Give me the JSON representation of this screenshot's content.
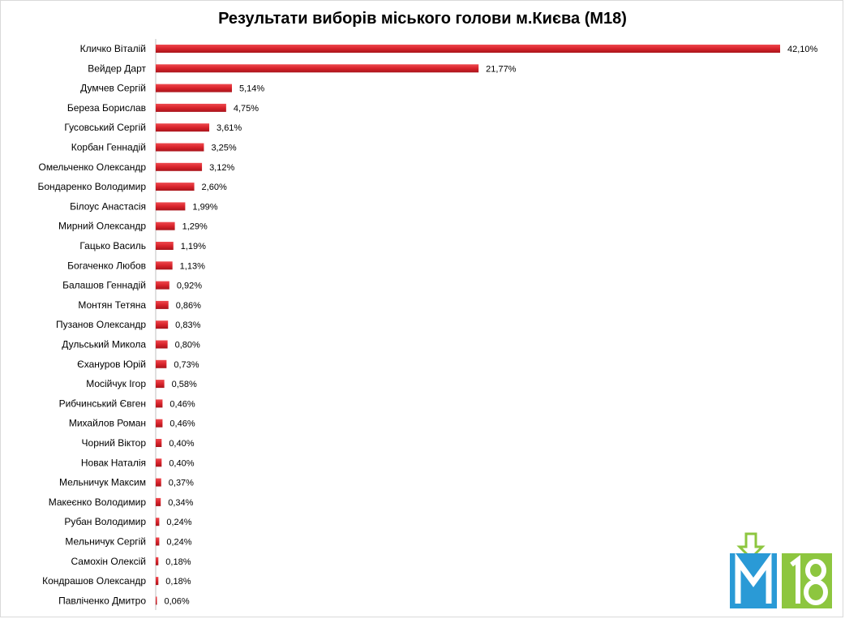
{
  "chart_data": {
    "type": "bar",
    "orientation": "horizontal",
    "title": "Результати виборів міського голови м.Києва (М18)",
    "categories": [
      "Кличко Віталій",
      "Вейдер Дарт",
      "Думчев Сергій",
      "Береза Борислав",
      "Гусовський Сергій",
      "Корбан Геннадій",
      "Омельченко Олександр",
      "Бондаренко Володимир",
      "Білоус Анастасія",
      "Мирний Олександр",
      "Гацько Василь",
      "Богаченко Любов",
      "Балашов Геннадій",
      "Монтян Тетяна",
      "Пузанов Олександр",
      "Дульський Микола",
      "Єхануров Юрій",
      "Мосійчук Ігор",
      "Рибчинський Євген",
      "Михайлов Роман",
      "Чорний Віктор",
      "Новак Наталія",
      "Мельничук Максим",
      "Макеєнко Володимир",
      "Рубан Володимир",
      "Мельничук Сергій",
      "Самохін Олексій",
      "Кондрашов Олександр",
      "Павліченко Дмитро"
    ],
    "values": [
      42.1,
      21.77,
      5.14,
      4.75,
      3.61,
      3.25,
      3.12,
      2.6,
      1.99,
      1.29,
      1.19,
      1.13,
      0.92,
      0.86,
      0.83,
      0.8,
      0.73,
      0.58,
      0.46,
      0.46,
      0.4,
      0.4,
      0.37,
      0.34,
      0.24,
      0.24,
      0.18,
      0.18,
      0.06
    ],
    "value_labels": [
      "42,10%",
      "21,77%",
      "5,14%",
      "4,75%",
      "3,61%",
      "3,25%",
      "3,12%",
      "2,60%",
      "1,99%",
      "1,29%",
      "1,19%",
      "1,13%",
      "0,92%",
      "0,86%",
      "0,83%",
      "0,80%",
      "0,73%",
      "0,58%",
      "0,46%",
      "0,46%",
      "0,40%",
      "0,40%",
      "0,37%",
      "0,34%",
      "0,24%",
      "0,24%",
      "0,18%",
      "0,18%",
      "0,06%"
    ],
    "unit": "%",
    "xlim": [
      0,
      42.1
    ],
    "grid": false,
    "legend": "none",
    "bar_color": "#d9232b"
  },
  "logo": {
    "text": "M18",
    "colors": [
      "#2a9ad6",
      "#8dc63f"
    ]
  }
}
